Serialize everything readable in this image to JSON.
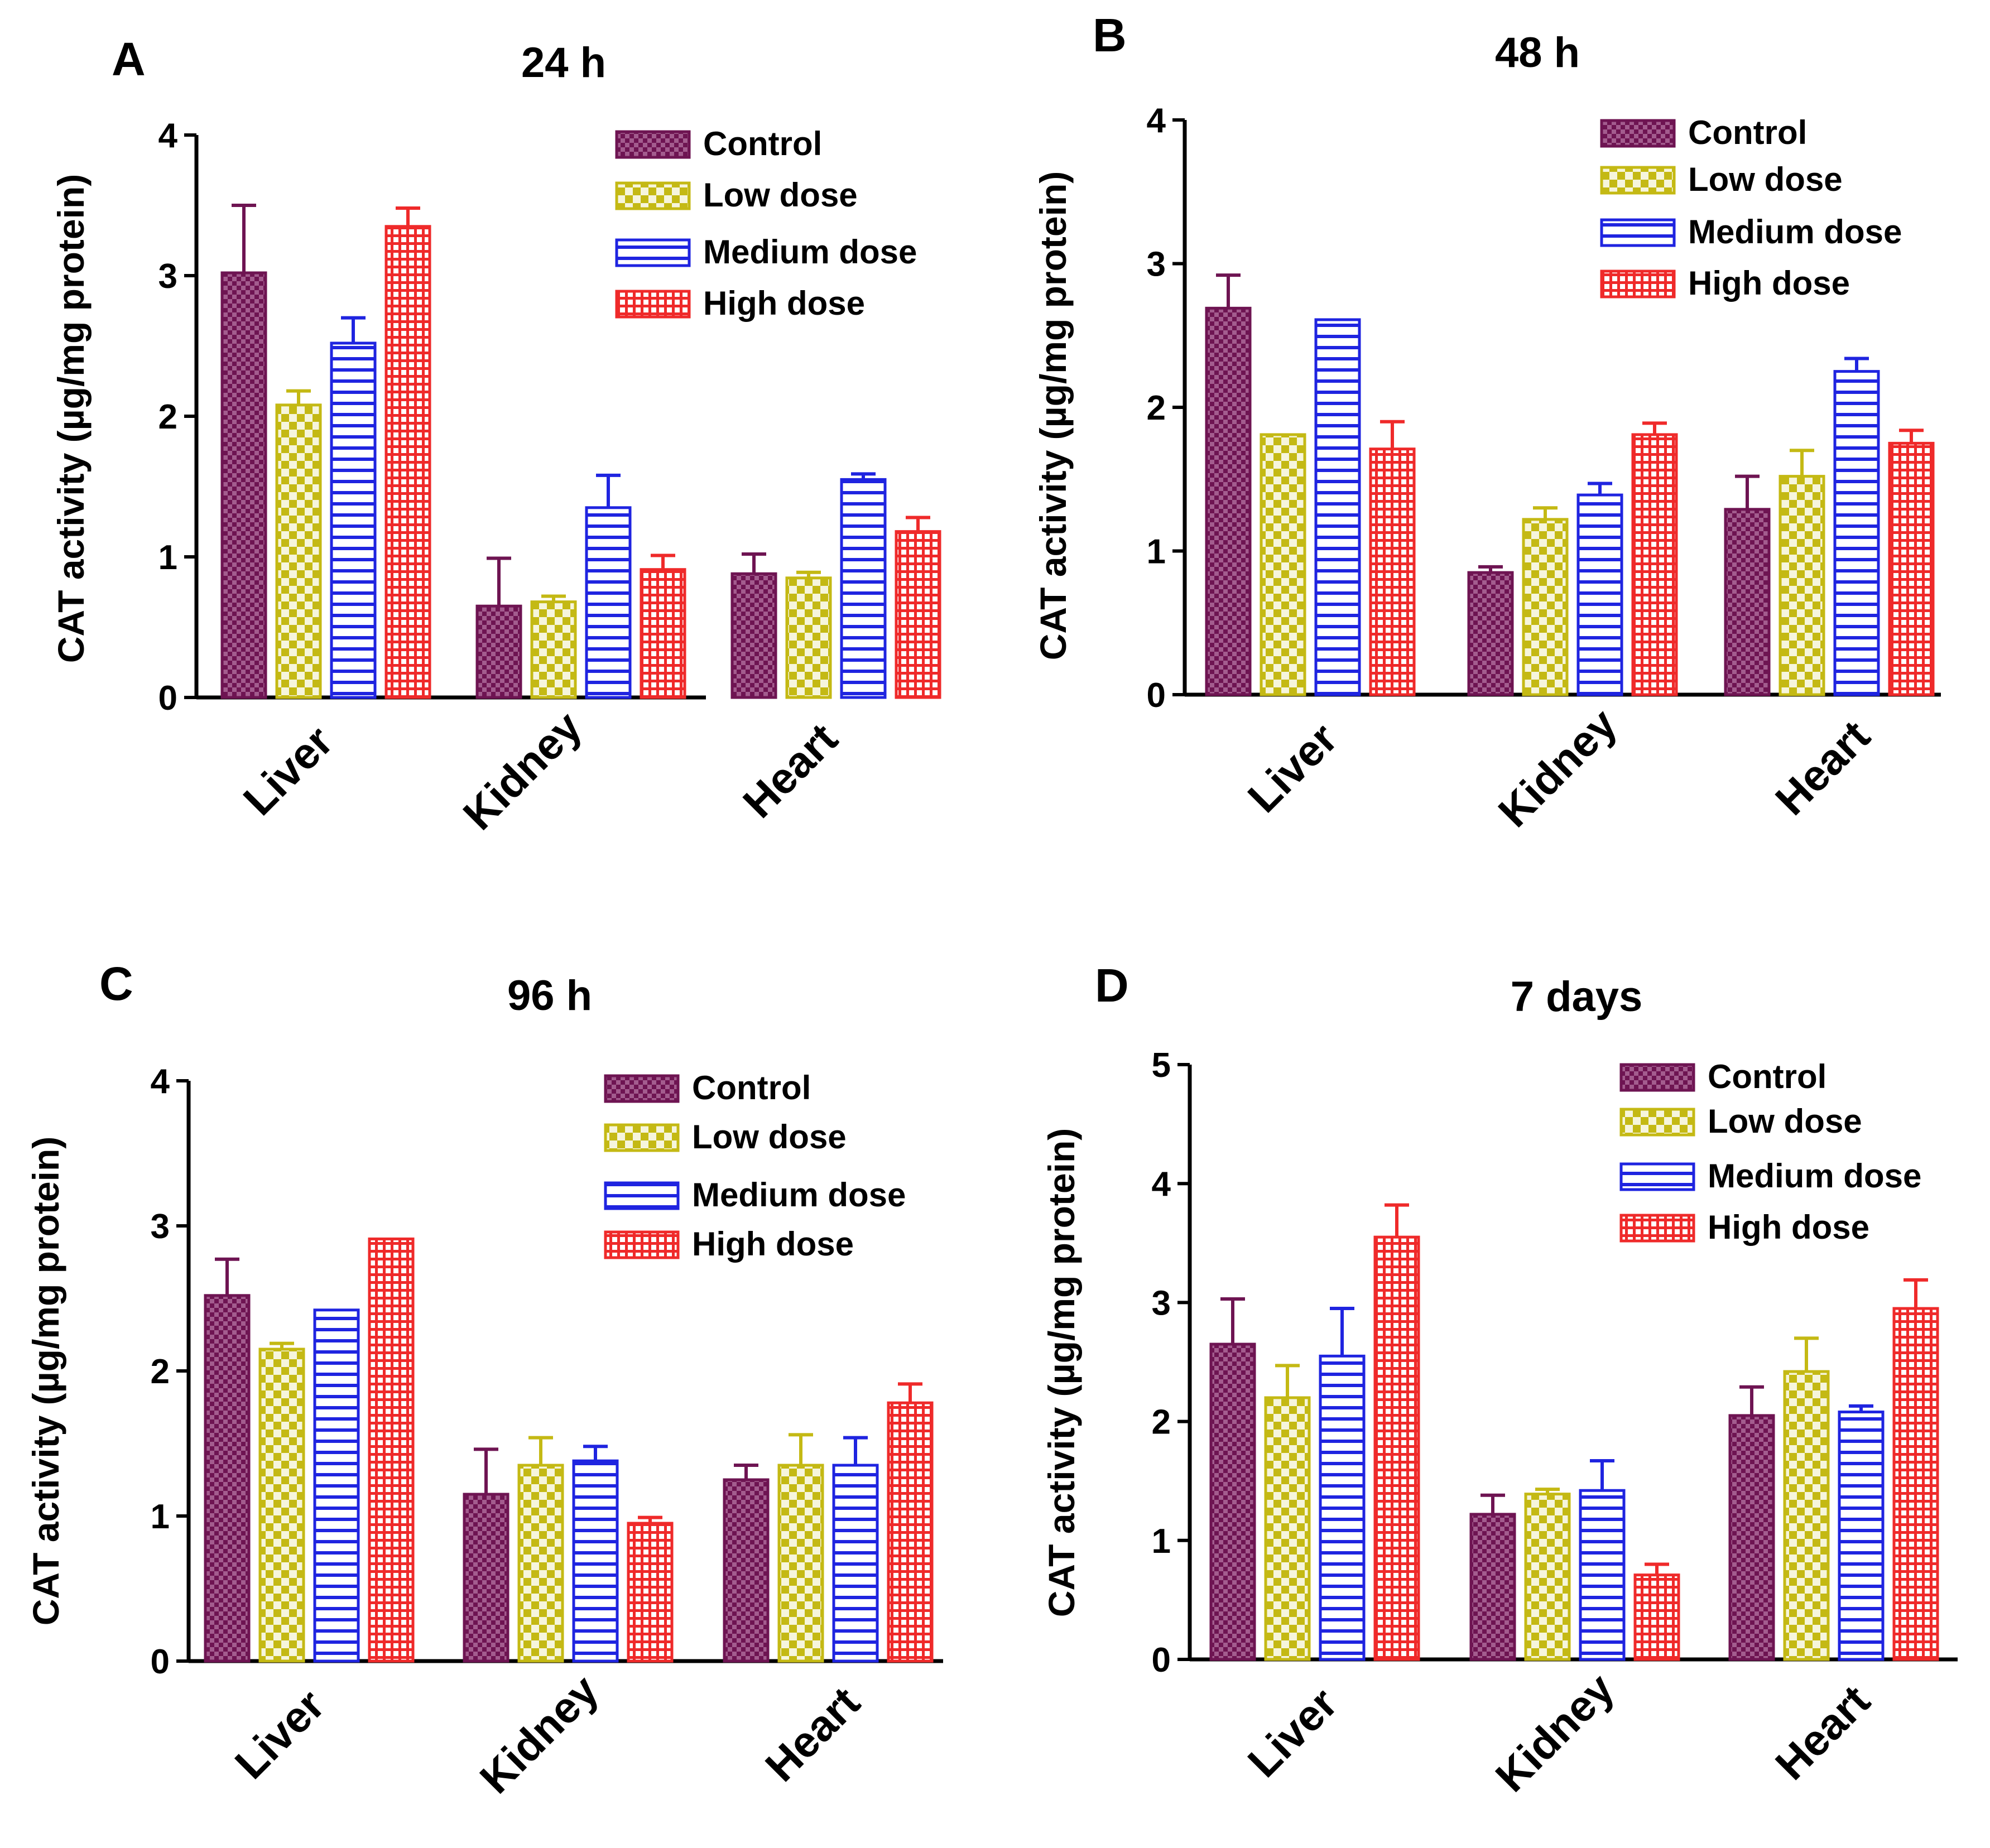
{
  "chart_data": [
    {
      "type": "bar",
      "panel_label": "A",
      "title": "24 h",
      "ylabel": "CAT activity (µg/mg protein)",
      "xlabel": "",
      "ylim": [
        0,
        4
      ],
      "yticks": [
        "0",
        "1",
        "2",
        "3",
        "4"
      ],
      "categories": [
        "Liver",
        "Kidney",
        "Heart"
      ],
      "legend_position": "top-right",
      "series": [
        {
          "name": "Control",
          "values": [
            3.02,
            0.65,
            0.88
          ],
          "errors": [
            0.48,
            0.34,
            0.14
          ]
        },
        {
          "name": "Low dose",
          "values": [
            2.08,
            0.68,
            0.85
          ],
          "errors": [
            0.1,
            0.04,
            0.04
          ]
        },
        {
          "name": "Medium dose",
          "values": [
            2.52,
            1.35,
            1.55
          ],
          "errors": [
            0.18,
            0.23,
            0.04
          ]
        },
        {
          "name": "High dose",
          "values": [
            3.35,
            0.91,
            1.18
          ],
          "errors": [
            0.13,
            0.1,
            0.1
          ]
        }
      ]
    },
    {
      "type": "bar",
      "panel_label": "B",
      "title": "48 h",
      "ylabel": "CAT activity (µg/mg protein)",
      "xlabel": "",
      "ylim": [
        0,
        4
      ],
      "yticks": [
        "0",
        "1",
        "2",
        "3",
        "4"
      ],
      "categories": [
        "Liver",
        "Kidney",
        "Heart"
      ],
      "legend_position": "top-right",
      "series": [
        {
          "name": "Control",
          "values": [
            2.69,
            0.85,
            1.29
          ],
          "errors": [
            0.23,
            0.04,
            0.23
          ]
        },
        {
          "name": "Low dose",
          "values": [
            1.81,
            1.22,
            1.52
          ],
          "errors": [
            0.0,
            0.08,
            0.18
          ]
        },
        {
          "name": "Medium dose",
          "values": [
            2.61,
            1.39,
            2.25
          ],
          "errors": [
            0.0,
            0.08,
            0.09
          ]
        },
        {
          "name": "High dose",
          "values": [
            1.71,
            1.81,
            1.75
          ],
          "errors": [
            0.19,
            0.08,
            0.09
          ]
        }
      ]
    },
    {
      "type": "bar",
      "panel_label": "C",
      "title": "96 h",
      "ylabel": "CAT activity (µg/mg protein)",
      "xlabel": "",
      "ylim": [
        0,
        4
      ],
      "yticks": [
        "0",
        "1",
        "2",
        "3",
        "4"
      ],
      "categories": [
        "Liver",
        "Kidney",
        "Heart"
      ],
      "legend_position": "top-right",
      "series": [
        {
          "name": "Control",
          "values": [
            2.52,
            1.15,
            1.25
          ],
          "errors": [
            0.25,
            0.31,
            0.1
          ]
        },
        {
          "name": "Low dose",
          "values": [
            2.15,
            1.35,
            1.35
          ],
          "errors": [
            0.04,
            0.19,
            0.21
          ]
        },
        {
          "name": "Medium dose",
          "values": [
            2.42,
            1.38,
            1.35
          ],
          "errors": [
            0.0,
            0.1,
            0.19
          ]
        },
        {
          "name": "High dose",
          "values": [
            2.91,
            0.95,
            1.78
          ],
          "errors": [
            0.0,
            0.04,
            0.13
          ]
        }
      ]
    },
    {
      "type": "bar",
      "panel_label": "D",
      "title": "7 days",
      "ylabel": "CAT activity (µg/mg protein)",
      "xlabel": "",
      "ylim": [
        0,
        5
      ],
      "yticks": [
        "0",
        "1",
        "2",
        "3",
        "4",
        "5"
      ],
      "categories": [
        "Liver",
        "Kidney",
        "Heart"
      ],
      "legend_position": "top-right",
      "series": [
        {
          "name": "Control",
          "values": [
            2.65,
            1.22,
            2.05
          ],
          "errors": [
            0.38,
            0.16,
            0.24
          ]
        },
        {
          "name": "Low dose",
          "values": [
            2.2,
            1.39,
            2.42
          ],
          "errors": [
            0.27,
            0.04,
            0.28
          ]
        },
        {
          "name": "Medium dose",
          "values": [
            2.55,
            1.42,
            2.08
          ],
          "errors": [
            0.4,
            0.25,
            0.05
          ]
        },
        {
          "name": "High dose",
          "values": [
            3.55,
            0.71,
            2.95
          ],
          "errors": [
            0.27,
            0.09,
            0.24
          ]
        }
      ]
    }
  ],
  "colors": {
    "Control": "#6e1452",
    "Low dose": "#c4b914",
    "Medium dose": "#1f24e0",
    "High dose": "#ef2a2a",
    "axis": "#000000"
  }
}
